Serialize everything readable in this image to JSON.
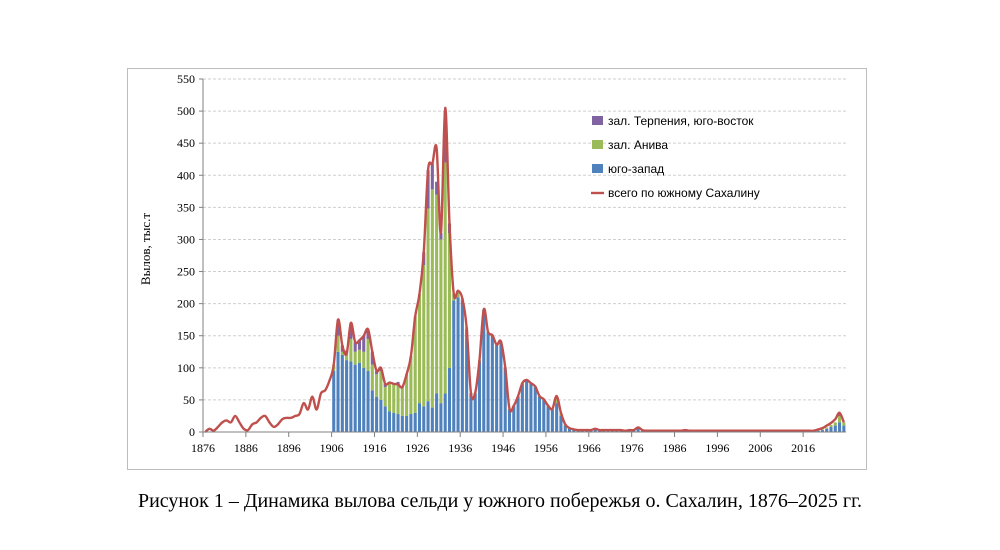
{
  "caption": "Рисунок 1 – Динамика вылова сельди у южного побережья о. Сахалин, 1876–2025 гг.",
  "chart_data": {
    "type": "bar",
    "ylabel": "Вылов, тыс.т",
    "xlabel": "",
    "ylim": [
      0,
      550
    ],
    "yticks": [
      0,
      50,
      100,
      150,
      200,
      250,
      300,
      350,
      400,
      450,
      500,
      550
    ],
    "xlim": [
      1876,
      2025
    ],
    "xticks": [
      1876,
      1886,
      1896,
      1906,
      1916,
      1926,
      1936,
      1946,
      1956,
      1966,
      1976,
      1986,
      1996,
      2006,
      2016
    ],
    "grid": true,
    "legend_position": "top-right",
    "colors": {
      "terpeniya": "#8064a2",
      "aniva": "#9bbb59",
      "southwest": "#4f81bd",
      "total": "#c0504d"
    },
    "legend": [
      {
        "key": "terpeniya",
        "label": "зал. Терпения, юго-восток",
        "kind": "box"
      },
      {
        "key": "aniva",
        "label": "зал. Анива",
        "kind": "box"
      },
      {
        "key": "southwest",
        "label": "юго-запад",
        "kind": "box"
      },
      {
        "key": "total",
        "label": "всего по южному Сахалину",
        "kind": "line"
      }
    ],
    "series": [
      {
        "name": "юго-запад",
        "key": "southwest",
        "x": [
          1906,
          1907,
          1908,
          1909,
          1910,
          1911,
          1912,
          1913,
          1914,
          1915,
          1916,
          1917,
          1918,
          1919,
          1920,
          1921,
          1922,
          1923,
          1924,
          1925,
          1926,
          1927,
          1928,
          1929,
          1930,
          1931,
          1932,
          1933,
          1934,
          1935,
          1936,
          1937,
          1938,
          1939,
          1940,
          1941,
          1942,
          1943,
          1944,
          1945,
          1946,
          1947,
          1948,
          1949,
          1950,
          1951,
          1952,
          1953,
          1954,
          1955,
          1956,
          1957,
          1958,
          1959,
          1960,
          1961,
          1962,
          1963,
          1964,
          1965,
          1966,
          1967,
          1968,
          1969,
          1970,
          1971,
          1972,
          1973,
          1974,
          1975,
          1976,
          1977,
          1978,
          1979,
          1980,
          1981,
          1982,
          1983,
          1984,
          1985,
          1986,
          1987,
          1988,
          1989,
          1990,
          1991,
          1992,
          1993,
          1994,
          1995,
          1996,
          1997,
          1998,
          1999,
          2000,
          2001,
          2002,
          2003,
          2004,
          2005,
          2006,
          2007,
          2008,
          2009,
          2010,
          2011,
          2012,
          2013,
          2014,
          2015,
          2016,
          2017,
          2018,
          2019,
          2020,
          2021,
          2022,
          2023,
          2024,
          2025
        ],
        "values": [
          95,
          125,
          120,
          112,
          110,
          105,
          108,
          100,
          95,
          65,
          55,
          50,
          40,
          32,
          30,
          28,
          25,
          25,
          28,
          30,
          45,
          40,
          48,
          38,
          60,
          45,
          60,
          100,
          205,
          210,
          205,
          160,
          60,
          60,
          110,
          190,
          155,
          150,
          135,
          140,
          100,
          35,
          40,
          55,
          75,
          80,
          75,
          70,
          55,
          50,
          40,
          35,
          45,
          25,
          10,
          5,
          3,
          2,
          2,
          2,
          2,
          4,
          2,
          2,
          2,
          2,
          2,
          2,
          1,
          2,
          2,
          6,
          2,
          1,
          1,
          1,
          1,
          1,
          1,
          1,
          1,
          1,
          2,
          1,
          1,
          1,
          1,
          1,
          1,
          1,
          1,
          1,
          1,
          1,
          1,
          1,
          1,
          1,
          1,
          1,
          1,
          1,
          1,
          1,
          1,
          1,
          1,
          1,
          1,
          1,
          1,
          1,
          1,
          2,
          3,
          5,
          8,
          10,
          15,
          10
        ]
      },
      {
        "name": "зал. Анива",
        "key": "aniva",
        "x": [
          1906,
          1907,
          1908,
          1909,
          1910,
          1911,
          1912,
          1913,
          1914,
          1915,
          1916,
          1917,
          1918,
          1919,
          1920,
          1921,
          1922,
          1923,
          1924,
          1925,
          1926,
          1927,
          1928,
          1929,
          1930,
          1931,
          1932,
          1933,
          1934,
          1935,
          1936,
          1937,
          1938,
          1939,
          1940,
          1941,
          1942,
          1943,
          1944,
          1945,
          1946,
          1947,
          1948,
          1949,
          1950,
          1951,
          1952,
          1953,
          1954,
          1955,
          1956,
          1957,
          1958,
          1959,
          1960,
          1961,
          1962,
          1963,
          1964,
          1965,
          1966,
          1967,
          1968,
          1969,
          1970,
          1971,
          1972,
          1973,
          1974,
          1975,
          1976,
          1977,
          1978,
          1979,
          1980,
          1981,
          1982,
          1983,
          1984,
          1985,
          1986,
          1987,
          1988,
          1989,
          1990,
          1991,
          1992,
          1993,
          1994,
          1995,
          1996,
          1997,
          1998,
          1999,
          2000,
          2001,
          2002,
          2003,
          2004,
          2005,
          2006,
          2007,
          2008,
          2009,
          2010,
          2011,
          2012,
          2013,
          2014,
          2015,
          2016,
          2017,
          2018,
          2019,
          2020,
          2021,
          2022,
          2023,
          2024,
          2025
        ],
        "values": [
          10,
          25,
          5,
          10,
          35,
          20,
          20,
          25,
          50,
          40,
          35,
          45,
          30,
          45,
          45,
          45,
          45,
          65,
          90,
          150,
          170,
          220,
          300,
          340,
          310,
          255,
          360,
          210,
          10,
          10,
          3,
          3,
          1,
          1,
          2,
          1,
          1,
          1,
          1,
          1,
          1,
          1,
          1,
          1,
          1,
          1,
          1,
          1,
          1,
          1,
          1,
          1,
          10,
          5,
          2,
          1,
          1,
          1,
          1,
          1,
          1,
          1,
          1,
          1,
          1,
          1,
          1,
          1,
          1,
          1,
          1,
          1,
          1,
          1,
          1,
          1,
          1,
          1,
          1,
          1,
          1,
          1,
          1,
          1,
          1,
          1,
          1,
          1,
          1,
          1,
          1,
          1,
          1,
          1,
          1,
          1,
          1,
          1,
          1,
          1,
          1,
          1,
          1,
          1,
          1,
          1,
          1,
          1,
          1,
          1,
          1,
          1,
          1,
          1,
          1,
          2,
          3,
          5,
          10,
          5
        ]
      },
      {
        "name": "зал. Терпения, юго-восток",
        "key": "terpeniya",
        "x": [
          1906,
          1907,
          1908,
          1909,
          1910,
          1911,
          1912,
          1913,
          1914,
          1915,
          1916,
          1917,
          1918,
          1919,
          1920,
          1921,
          1922,
          1923,
          1924,
          1925,
          1926,
          1927,
          1928,
          1929,
          1930,
          1931,
          1932,
          1933,
          1934,
          1935,
          1936,
          1937,
          1938,
          1939,
          1940,
          1941,
          1942,
          1943,
          1944,
          1945,
          1946,
          1947,
          1948,
          1949,
          1950,
          1951,
          1952,
          1953,
          1954,
          1955,
          1956,
          1957,
          1958,
          1959,
          1960,
          1961,
          1962,
          1963,
          1964,
          1965,
          1966,
          1967,
          1968,
          1969,
          1970,
          1971,
          1972,
          1973,
          1974,
          1975,
          1976,
          1977,
          1978,
          1979,
          1980,
          1981,
          1982,
          1983,
          1984,
          1985,
          1986,
          1987,
          1988,
          1989,
          1990,
          1991,
          1992,
          1993,
          1994,
          1995,
          1996,
          1997,
          1998,
          1999,
          2000,
          2001,
          2002,
          2003,
          2004,
          2005,
          2006,
          2007,
          2008,
          2009,
          2010,
          2011,
          2012,
          2013,
          2014,
          2015,
          2016,
          2017,
          2018,
          2019,
          2020,
          2021,
          2022,
          2023,
          2024,
          2025
        ],
        "values": [
          0,
          25,
          10,
          5,
          25,
          15,
          15,
          25,
          15,
          20,
          5,
          5,
          5,
          0,
          0,
          5,
          0,
          0,
          0,
          0,
          0,
          20,
          60,
          40,
          20,
          10,
          80,
          15,
          0,
          0,
          0,
          0,
          0,
          0,
          0,
          0,
          0,
          0,
          0,
          0,
          0,
          0,
          0,
          0,
          0,
          0,
          0,
          0,
          0,
          0,
          0,
          0,
          0,
          0,
          0,
          0,
          0,
          0,
          0,
          0,
          0,
          0,
          0,
          0,
          0,
          0,
          0,
          0,
          0,
          0,
          0,
          0,
          0,
          0,
          0,
          0,
          0,
          0,
          0,
          0,
          0,
          0,
          0,
          0,
          0,
          0,
          0,
          0,
          0,
          0,
          0,
          0,
          0,
          0,
          0,
          0,
          0,
          0,
          0,
          0,
          0,
          0,
          0,
          0,
          0,
          0,
          0,
          0,
          0,
          0,
          0,
          0,
          0,
          0,
          0,
          0,
          0,
          0,
          5,
          0
        ]
      },
      {
        "name": "всего по южному Сахалину",
        "key": "total",
        "type": "line",
        "x": [
          1876,
          1877,
          1878,
          1879,
          1880,
          1881,
          1882,
          1883,
          1884,
          1885,
          1886,
          1887,
          1888,
          1889,
          1890,
          1891,
          1892,
          1893,
          1894,
          1895,
          1896,
          1897,
          1898,
          1899,
          1900,
          1901,
          1902,
          1903,
          1904,
          1905,
          1906,
          1907,
          1908,
          1909,
          1910,
          1911,
          1912,
          1913,
          1914,
          1915,
          1916,
          1917,
          1918,
          1919,
          1920,
          1921,
          1922,
          1923,
          1924,
          1925,
          1926,
          1927,
          1928,
          1929,
          1930,
          1931,
          1932,
          1933,
          1934,
          1935,
          1936,
          1937,
          1938,
          1939,
          1940,
          1941,
          1942,
          1943,
          1944,
          1945,
          1946,
          1947,
          1948,
          1949,
          1950,
          1951,
          1952,
          1953,
          1954,
          1955,
          1956,
          1957,
          1958,
          1959,
          1960,
          1961,
          1962,
          1963,
          1964,
          1965,
          1966,
          1967,
          1968,
          1969,
          1970,
          1971,
          1972,
          1973,
          1974,
          1975,
          1976,
          1977,
          1978,
          1979,
          1980,
          1981,
          1982,
          1983,
          1984,
          1985,
          1986,
          1987,
          1988,
          1989,
          1990,
          1991,
          1992,
          1993,
          1994,
          1995,
          1996,
          1997,
          1998,
          1999,
          2000,
          2001,
          2002,
          2003,
          2004,
          2005,
          2006,
          2007,
          2008,
          2009,
          2010,
          2011,
          2012,
          2013,
          2014,
          2015,
          2016,
          2017,
          2018,
          2019,
          2020,
          2021,
          2022,
          2023,
          2024,
          2025
        ],
        "values": [
          0,
          5,
          2,
          8,
          15,
          18,
          15,
          25,
          15,
          5,
          3,
          12,
          15,
          22,
          25,
          15,
          8,
          12,
          20,
          22,
          22,
          25,
          28,
          45,
          35,
          55,
          35,
          60,
          65,
          80,
          105,
          175,
          135,
          122,
          170,
          140,
          143,
          150,
          160,
          125,
          95,
          100,
          75,
          77,
          75,
          74,
          70,
          90,
          118,
          180,
          215,
          280,
          408,
          418,
          442,
          310,
          505,
          325,
          215,
          220,
          208,
          163,
          61,
          61,
          112,
          191,
          156,
          151,
          136,
          141,
          101,
          36,
          41,
          56,
          76,
          81,
          76,
          71,
          56,
          51,
          41,
          36,
          56,
          30,
          12,
          6,
          4,
          3,
          3,
          3,
          3,
          5,
          3,
          3,
          3,
          3,
          3,
          3,
          2,
          3,
          3,
          7,
          3,
          2,
          2,
          2,
          2,
          2,
          2,
          2,
          2,
          2,
          3,
          2,
          2,
          2,
          2,
          2,
          2,
          2,
          2,
          2,
          2,
          2,
          2,
          2,
          2,
          2,
          2,
          2,
          2,
          2,
          2,
          2,
          2,
          2,
          2,
          2,
          2,
          2,
          2,
          2,
          2,
          4,
          6,
          10,
          14,
          20,
          30,
          15
        ]
      }
    ]
  }
}
